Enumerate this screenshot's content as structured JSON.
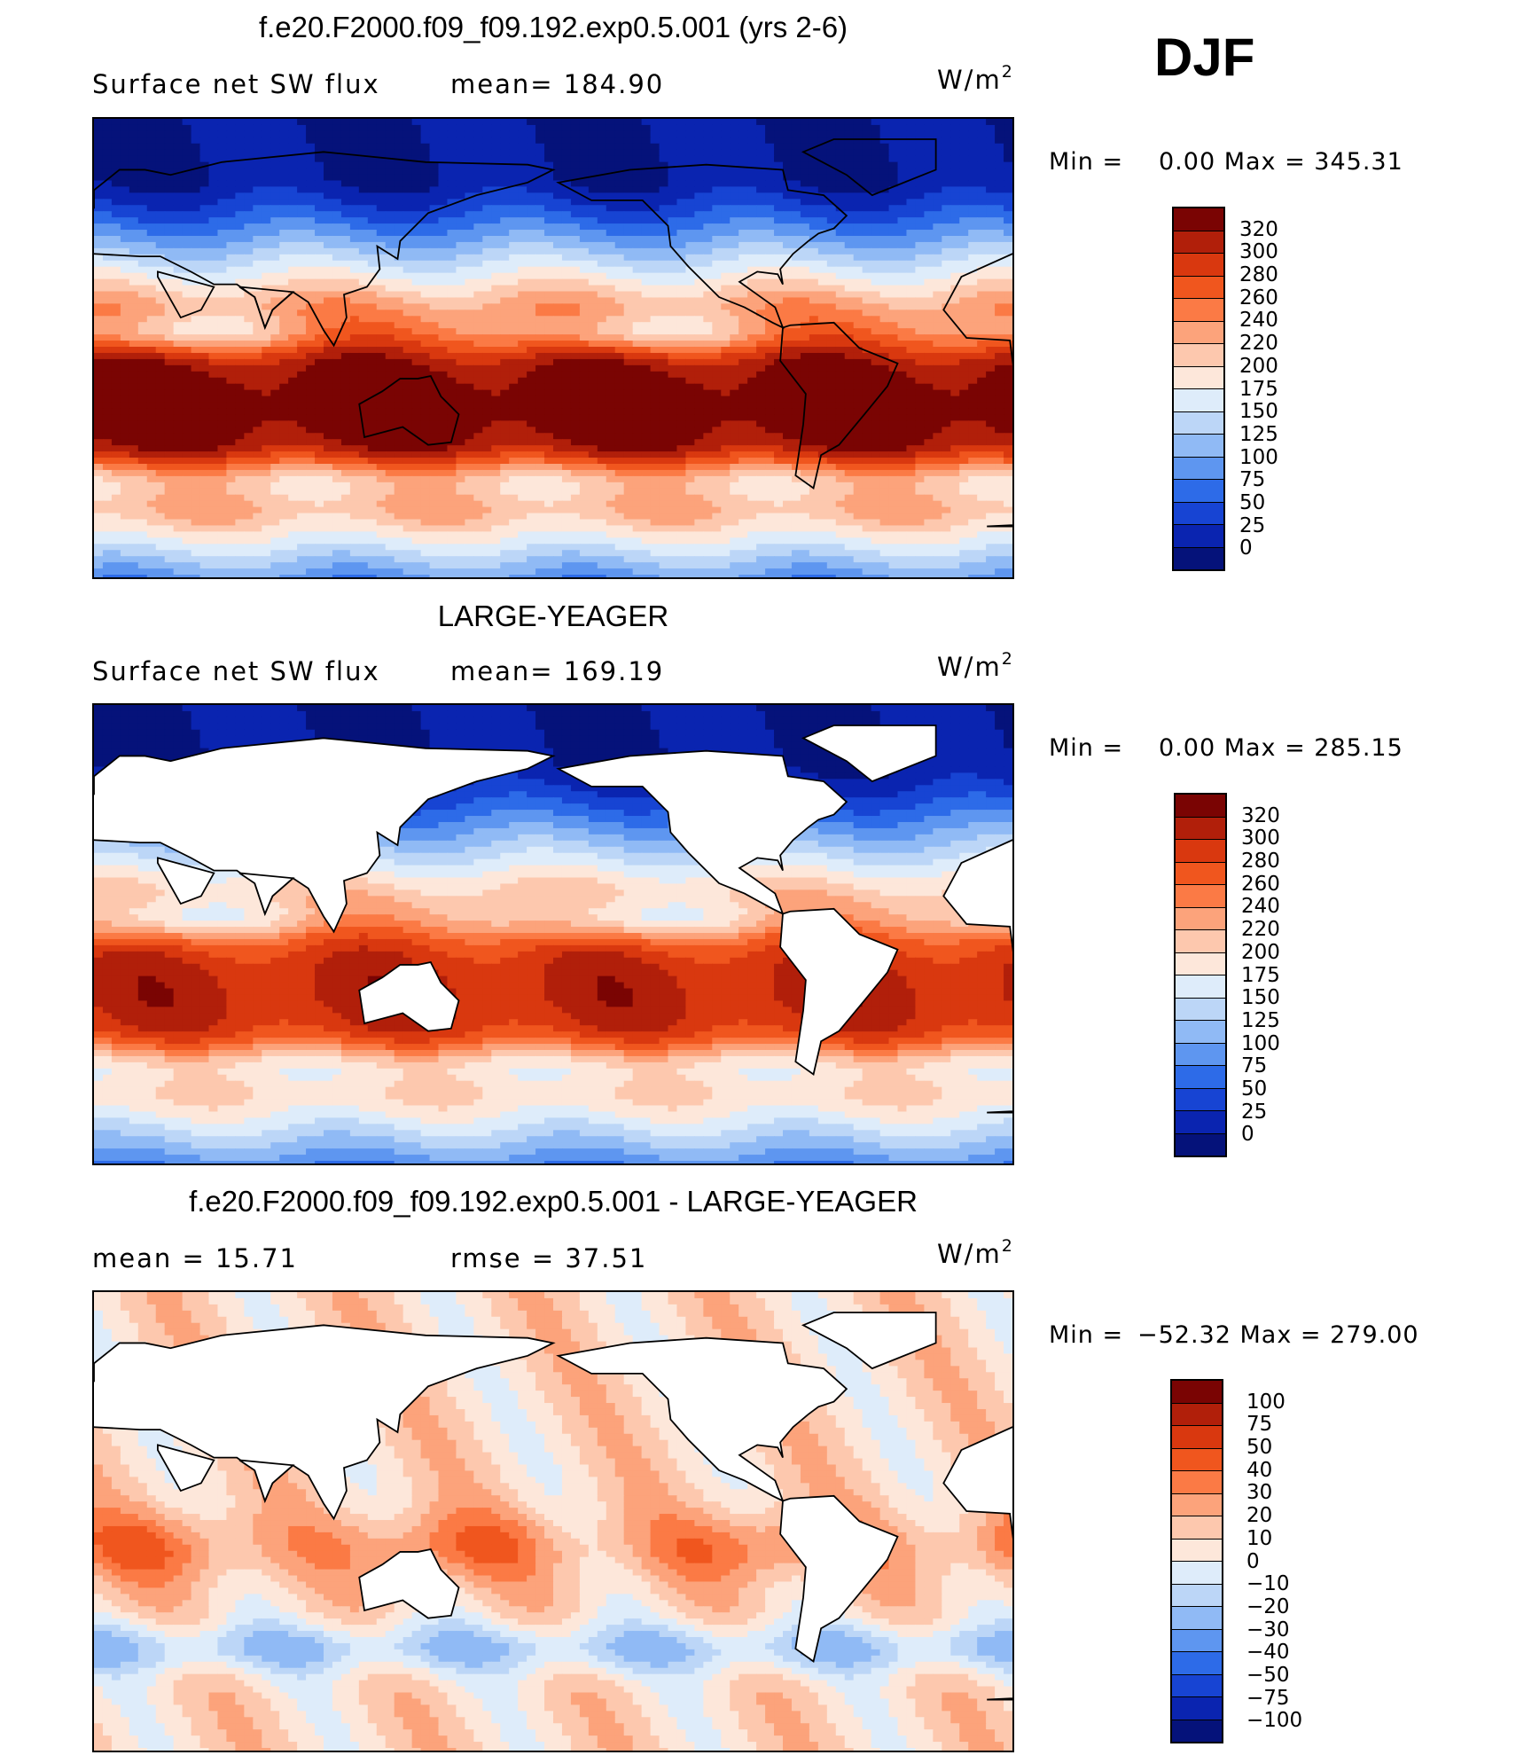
{
  "season": "DJF",
  "units": {
    "base": "W/m",
    "exp": "2"
  },
  "panels": [
    {
      "title": "f.e20.F2000.f09_f09.192.exp0.5.001 (yrs 2-6)",
      "left_label": "Surface net SW flux",
      "mid_label": "mean= 184.90",
      "min_text": "Min =",
      "minmax_text": "0.00 Max = 345.31",
      "field": "model",
      "levels": [
        "320",
        "300",
        "280",
        "260",
        "240",
        "220",
        "200",
        "175",
        "150",
        "125",
        "100",
        "75",
        "50",
        "25",
        "0"
      ],
      "colors": [
        "#7a0403",
        "#b11f0a",
        "#d9380f",
        "#f0561e",
        "#fb7a45",
        "#fca37b",
        "#fdc8ae",
        "#fde7da",
        "#deecfa",
        "#bcd6f7",
        "#90baf5",
        "#5e96f0",
        "#2d6be8",
        "#1744d3",
        "#0a24b0",
        "#05127a"
      ]
    },
    {
      "title": "LARGE-YEAGER",
      "left_label": "Surface net SW flux",
      "mid_label": "mean= 169.19",
      "min_text": "Min =",
      "minmax_text": "0.00 Max = 285.15",
      "field": "obs",
      "levels": [
        "320",
        "300",
        "280",
        "260",
        "240",
        "220",
        "200",
        "175",
        "150",
        "125",
        "100",
        "75",
        "50",
        "25",
        "0"
      ],
      "colors": [
        "#7a0403",
        "#b11f0a",
        "#d9380f",
        "#f0561e",
        "#fb7a45",
        "#fca37b",
        "#fdc8ae",
        "#fde7da",
        "#deecfa",
        "#bcd6f7",
        "#90baf5",
        "#5e96f0",
        "#2d6be8",
        "#1744d3",
        "#0a24b0",
        "#05127a"
      ]
    },
    {
      "title": "f.e20.F2000.f09_f09.192.exp0.5.001 - LARGE-YEAGER",
      "left_label": "mean = 15.71",
      "mid_label": "rmse = 37.51",
      "min_text": "Min =",
      "minmax_text": "−52.32 Max = 279.00",
      "field": "diff",
      "levels": [
        "100",
        "75",
        "50",
        "40",
        "30",
        "20",
        "10",
        "0",
        "−10",
        "−20",
        "−30",
        "−40",
        "−50",
        "−75",
        "−100"
      ],
      "colors": [
        "#7a0403",
        "#b11f0a",
        "#d9380f",
        "#f0561e",
        "#fb7a45",
        "#fca37b",
        "#fdc8ae",
        "#fde7da",
        "#deecfa",
        "#bcd6f7",
        "#90baf5",
        "#5e96f0",
        "#2d6be8",
        "#1744d3",
        "#0a24b0",
        "#05127a"
      ]
    }
  ]
}
